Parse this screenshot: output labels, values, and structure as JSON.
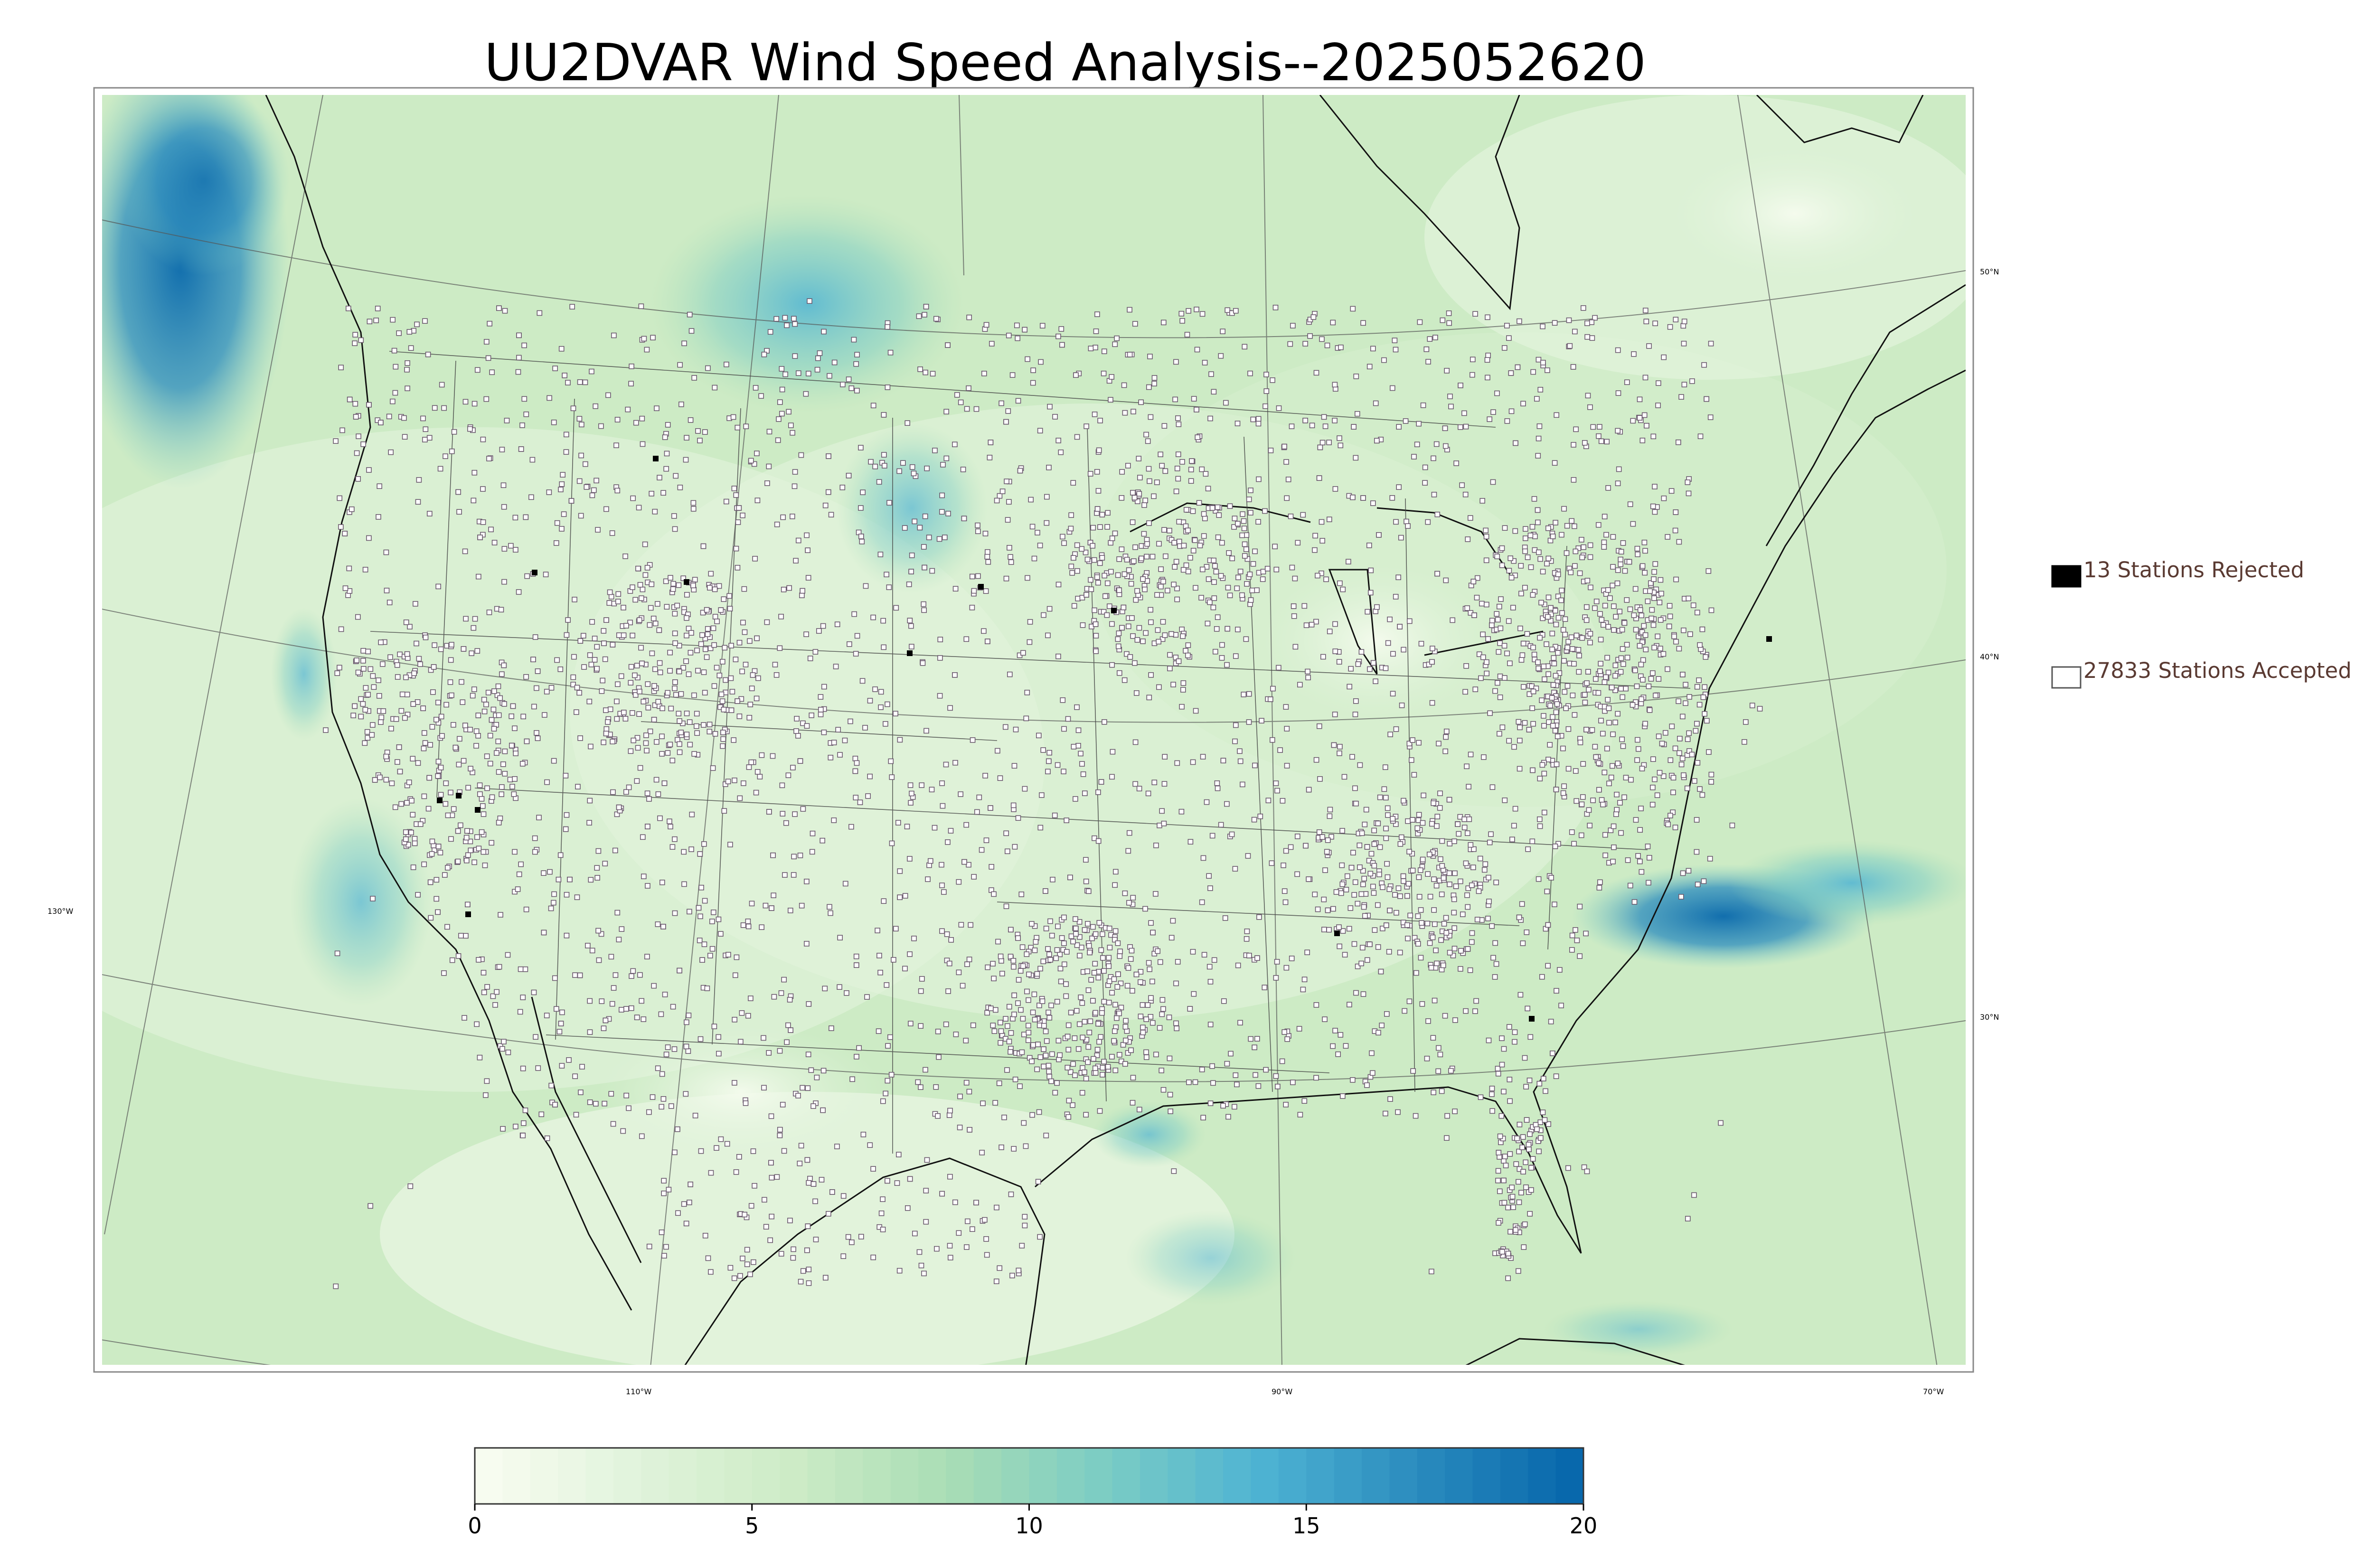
{
  "title": "UU2DVAR Wind Speed Analysis--2025052620",
  "legend": {
    "rejected": {
      "label": "13 Stations Rejected",
      "count": 13,
      "color": "#000000"
    },
    "accepted": {
      "label": "27833 Stations Accepted",
      "count": 27833,
      "color": "#ffffff"
    }
  },
  "colorbar": {
    "min": 0,
    "max": 20,
    "ticks": [
      "0",
      "5",
      "10",
      "15",
      "20"
    ],
    "colors": [
      "#f7fcf0",
      "#e0f3db",
      "#ccebc5",
      "#a8ddb5",
      "#7bccc4",
      "#4eb3d3",
      "#2b8cbe",
      "#0868ac"
    ]
  },
  "axes": {
    "lon_labels": [
      "130°W",
      "110°W",
      "90°W",
      "70°W"
    ],
    "lat_labels": [
      "50°N",
      "40°N",
      "30°N"
    ]
  }
}
